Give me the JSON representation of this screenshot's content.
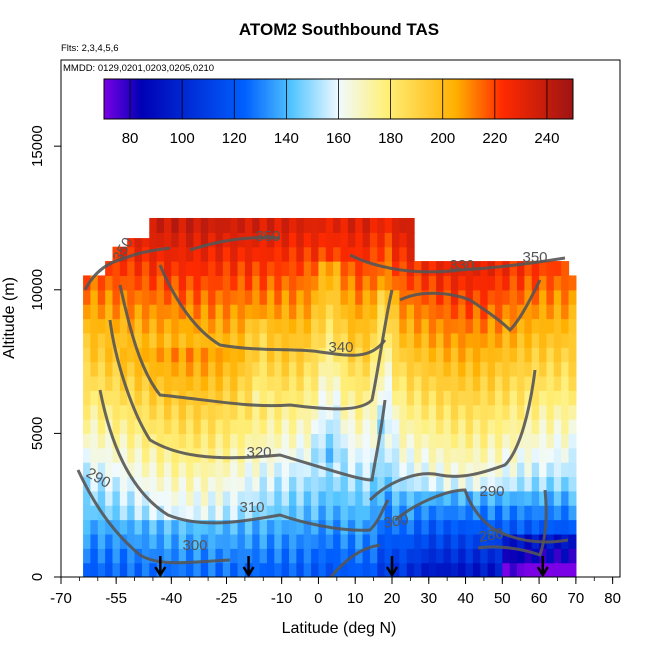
{
  "chart_data": {
    "type": "heatmap",
    "title": "ATOM2 Southbound TAS",
    "flights_note": "Flts: 2,3,4,5,6",
    "mmdd_note": "MMDD: 0129,0201,0203,0205,0210",
    "xlabel": "Latitude (deg N)",
    "ylabel": "Altitude (m)",
    "xlim": [
      -70,
      82
    ],
    "ylim": [
      0,
      18000
    ],
    "x_ticks": [
      -70,
      -55,
      -40,
      -25,
      -10,
      0,
      10,
      20,
      30,
      40,
      50,
      60,
      70,
      80
    ],
    "y_ticks": [
      0,
      5000,
      10000,
      15000
    ],
    "colorbar": {
      "range": [
        70,
        250
      ],
      "ticks": [
        80,
        100,
        120,
        140,
        160,
        180,
        200,
        220,
        240
      ],
      "colors": [
        "#7a00e6",
        "#0000b4",
        "#0060ff",
        "#52c4ff",
        "#f0faff",
        "#fff07a",
        "#ffb000",
        "#ff2a00",
        "#9e1414"
      ]
    },
    "contour_lines": [
      {
        "level": "290",
        "label": "290"
      },
      {
        "level": "280",
        "label": "280"
      },
      {
        "level": "300",
        "label": "300"
      },
      {
        "level": "310",
        "label": "310"
      },
      {
        "level": "320",
        "label": "320"
      },
      {
        "level": "330",
        "label": "330"
      },
      {
        "level": "340",
        "label": "340"
      },
      {
        "level": "350",
        "label": "350"
      }
    ],
    "arrows_at_latitude": [
      -43,
      -19,
      20,
      61
    ]
  }
}
